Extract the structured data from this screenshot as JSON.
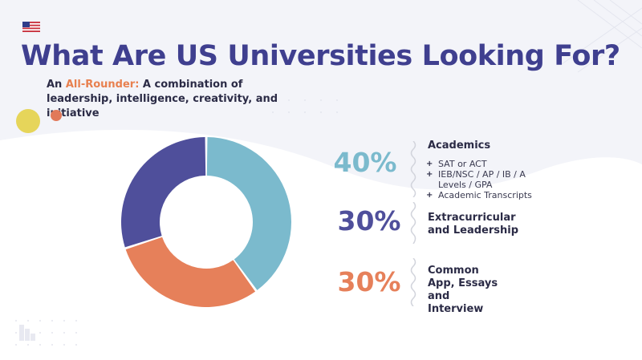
{
  "title": "What Are US Universities Looking For?",
  "subtitle": {
    "prefix": "An ",
    "accent": "All-Rounder:",
    "rest": " A combination of leadership, intelligence, creativity, and initiative"
  },
  "colors": {
    "academics": "#7bbacd",
    "extracurricular": "#4f4f9b",
    "common_app": "#e6805a",
    "title": "#3f3f8f",
    "accent": "#e8804f"
  },
  "icons": [
    "us-flag-icon",
    "plus-icon"
  ],
  "chart_data": {
    "type": "pie",
    "donut": true,
    "categories": [
      "Academics",
      "Common App, Essays and Interview",
      "Extracurricular and Leadership"
    ],
    "values": [
      40,
      30,
      30
    ],
    "value_labels": [
      "40%",
      "30%",
      "30%"
    ],
    "colors": [
      "#7bbacd",
      "#e6805a",
      "#4f4f9b"
    ]
  },
  "legend": [
    {
      "pct": "40%",
      "title": "Academics",
      "items": [
        "SAT or ACT",
        "IEB/NSC / AP / IB / A Levels / GPA",
        "Academic Transcripts"
      ]
    },
    {
      "pct": "30%",
      "title": "Extracurricular and Leadership",
      "items": []
    },
    {
      "pct": "30%",
      "title": "Common App, Essays and Interview",
      "items": []
    }
  ]
}
